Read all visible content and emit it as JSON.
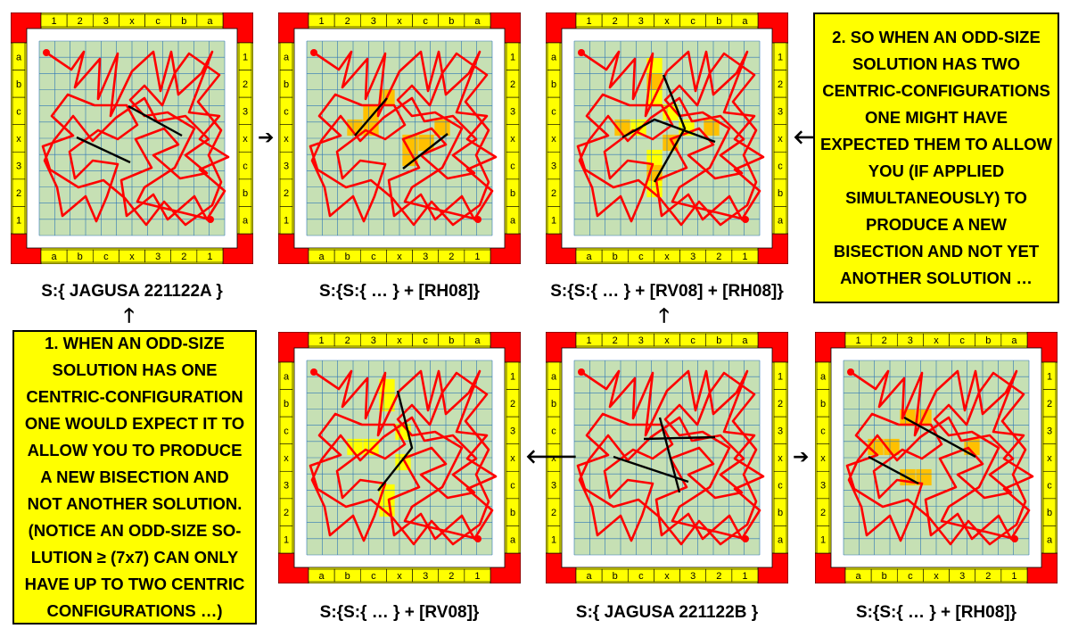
{
  "board": {
    "top_labels": [
      "1",
      "2",
      "3",
      "x",
      "c",
      "b",
      "a"
    ],
    "bottom_labels": [
      "a",
      "b",
      "c",
      "x",
      "3",
      "2",
      "1"
    ],
    "left_labels": [
      "a",
      "b",
      "c",
      "x",
      "3",
      "2",
      "1"
    ],
    "right_labels": [
      "1",
      "2",
      "3",
      "x",
      "c",
      "b",
      "a"
    ],
    "colors": {
      "frame": "#ffff00",
      "corner": "#ff0000",
      "inner": "#c6e0b4",
      "grid": "#2e75b6",
      "path": "#ff0000",
      "bisect": "#000000",
      "highlight_orange": "#ffc000",
      "highlight_yellow": "#ffff00"
    }
  },
  "panels": [
    {
      "id": "A",
      "caption": "S:{ JAGUSA 221122A }"
    },
    {
      "id": "B",
      "caption": "S:{S:{ … } + [RH08]}"
    },
    {
      "id": "C",
      "caption": "S:{S:{ … } + [RV08] + [RH08]}"
    },
    {
      "id": "D",
      "caption": "S:{S:{ … } + [RV08]}"
    },
    {
      "id": "E",
      "caption": "S:{ JAGUSA 221122B }"
    },
    {
      "id": "F",
      "caption": "S:{S:{ … } + [RH08]}"
    }
  ],
  "arrows": {
    "right": "➔",
    "left": "🡐",
    "up": "🡑"
  },
  "notes": {
    "note1": [
      "1. WHEN AN ODD-SIZE",
      "SOLUTION HAS ONE",
      "CENTRIC-CONFIGURATION",
      "ONE WOULD EXPECT IT TO",
      "ALLOW YOU TO PRODUCE",
      "A NEW BISECTION AND",
      "NOT ANOTHER SOLUTION.",
      "(NOTICE AN ODD-SIZE SO-",
      "LUTION ≥ (7x7) CAN ONLY",
      "HAVE UP TO TWO CENTRIC",
      "CONFIGURATIONS …)"
    ],
    "note2": [
      "2. SO WHEN AN ODD-SIZE",
      "SOLUTION HAS TWO",
      "CENTRIC-CONFIGURATIONS",
      "ONE MIGHT HAVE",
      "EXPECTED THEM TO ALLOW",
      "YOU (IF APPLIED",
      "SIMULTANEOUSLY) TO",
      "PRODUCE A NEW",
      "BISECTION AND NOT YET",
      "ANOTHER SOLUTION …"
    ]
  }
}
